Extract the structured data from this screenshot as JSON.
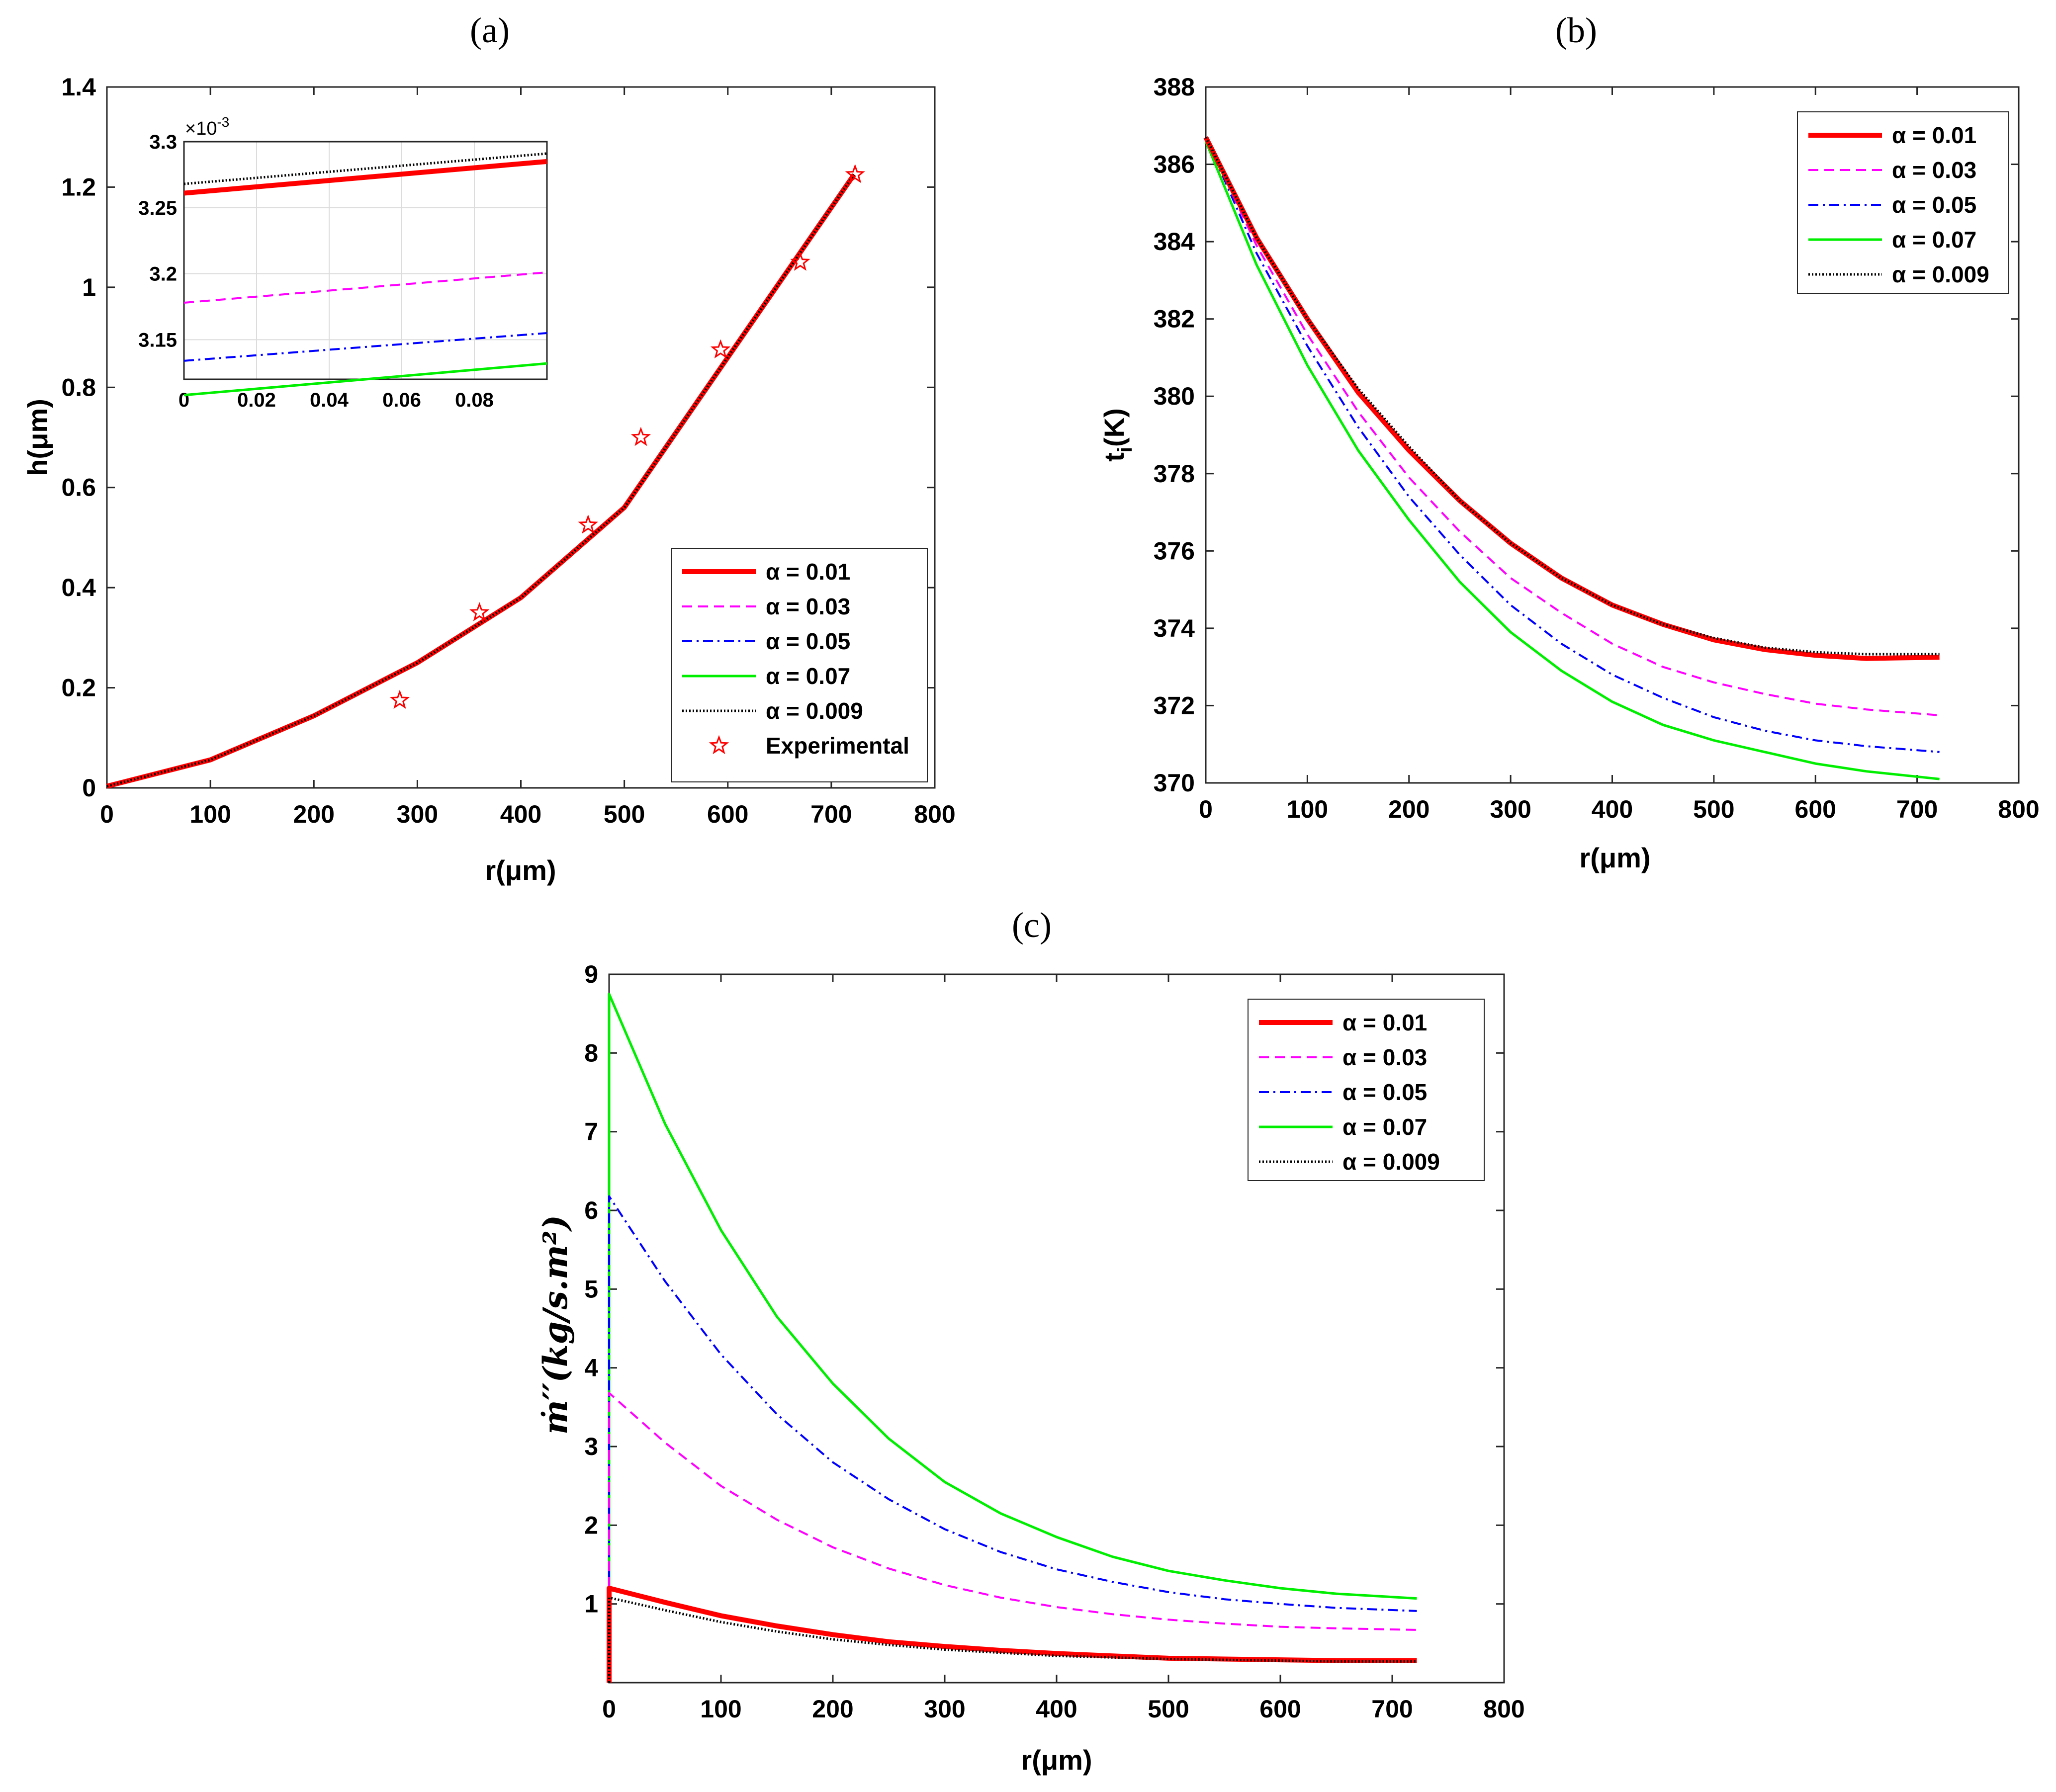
{
  "panels": {
    "a": "(a)",
    "b": "(b)",
    "c": "(c)"
  },
  "colors": {
    "a001": "#ff0000",
    "a003": "#ff00ff",
    "a005": "#0000ff",
    "a007": "#00ee00",
    "a0009": "#000000",
    "experimental": "#ff0000"
  },
  "legend": {
    "a001": "α =  0.01",
    "a003": "α =  0.03",
    "a005": "α =  0.05",
    "a007": "α =  0.07",
    "a0009": "α =  0.009",
    "experimental": "Experimental"
  },
  "chart_data": [
    {
      "id": "a",
      "type": "line",
      "title": "(a)",
      "xlabel": "r(μm)",
      "ylabel": "h(μm)",
      "xlim": [
        0,
        800
      ],
      "ylim": [
        0,
        1.4
      ],
      "xticks": [
        0,
        100,
        200,
        300,
        400,
        500,
        600,
        700,
        800
      ],
      "yticks": [
        0,
        0.2,
        0.4,
        0.6,
        0.8,
        1,
        1.2,
        1.4
      ],
      "ytick_labels": [
        "0",
        "0.2",
        "0.4",
        "0.6",
        "0.8",
        "1",
        "1.2",
        "1.4"
      ],
      "legend_position": "bottom-right",
      "series": [
        {
          "name": "α =  0.01",
          "style": "solid-thick",
          "x": [
            0,
            100,
            200,
            300,
            400,
            500,
            600,
            722
          ],
          "y": [
            0.0033,
            0.056,
            0.144,
            0.25,
            0.38,
            0.56,
            0.86,
            1.225
          ]
        },
        {
          "name": "α =  0.03",
          "style": "dashed",
          "x": [
            0,
            100,
            200,
            300,
            400,
            500,
            600,
            722
          ],
          "y": [
            0.0032,
            0.056,
            0.144,
            0.25,
            0.38,
            0.56,
            0.86,
            1.225
          ]
        },
        {
          "name": "α =  0.05",
          "style": "dashdot",
          "x": [
            0,
            100,
            200,
            300,
            400,
            500,
            600,
            722
          ],
          "y": [
            0.0031,
            0.056,
            0.144,
            0.25,
            0.38,
            0.56,
            0.86,
            1.225
          ]
        },
        {
          "name": "α =  0.07",
          "style": "solid",
          "x": [
            0,
            100,
            200,
            300,
            400,
            500,
            600,
            722
          ],
          "y": [
            0.0031,
            0.056,
            0.144,
            0.25,
            0.38,
            0.56,
            0.86,
            1.225
          ]
        },
        {
          "name": "α =  0.009",
          "style": "dotted",
          "x": [
            0,
            100,
            200,
            300,
            400,
            500,
            600,
            722
          ],
          "y": [
            0.0033,
            0.056,
            0.144,
            0.25,
            0.38,
            0.56,
            0.86,
            1.225
          ]
        }
      ],
      "experimental": {
        "name": "Experimental",
        "x": [
          283,
          360,
          465,
          516,
          593,
          670,
          723
        ],
        "y": [
          0.175,
          0.35,
          0.525,
          0.7,
          0.875,
          1.05,
          1.225
        ]
      },
      "inset": {
        "xlim": [
          0,
          0.1
        ],
        "ylim": [
          3.12,
          3.3
        ],
        "xticks": [
          0,
          0.02,
          0.04,
          0.06,
          0.08
        ],
        "xtick_labels": [
          "0",
          "0.02",
          "0.04",
          "0.06",
          "0.08"
        ],
        "yticks": [
          3.15,
          3.2,
          3.25,
          3.3
        ],
        "ytick_labels": [
          "3.15",
          "3.2",
          "3.25",
          "3.3"
        ],
        "exponent": "×10",
        "exponent_power": "-3",
        "grid": true,
        "series": [
          {
            "name": "α =  0.01",
            "x": [
              0,
              0.1
            ],
            "y": [
              3.261,
              3.285
            ]
          },
          {
            "name": "α =  0.03",
            "x": [
              0,
              0.1
            ],
            "y": [
              3.178,
              3.201
            ]
          },
          {
            "name": "α =  0.05",
            "x": [
              0,
              0.1
            ],
            "y": [
              3.134,
              3.155
            ]
          },
          {
            "name": "α =  0.07",
            "x": [
              0,
              0.1
            ],
            "y": [
              3.108,
              3.132
            ]
          },
          {
            "name": "α =  0.009",
            "x": [
              0,
              0.1
            ],
            "y": [
              3.268,
              3.291
            ]
          }
        ]
      }
    },
    {
      "id": "b",
      "type": "line",
      "title": "(b)",
      "xlabel": "r(μm)",
      "ylabel": "t",
      "ylabel_sub": "i",
      "ylabel_suffix": "(K)",
      "xlim": [
        0,
        800
      ],
      "ylim": [
        370,
        388
      ],
      "xticks": [
        0,
        100,
        200,
        300,
        400,
        500,
        600,
        700,
        800
      ],
      "yticks": [
        370,
        372,
        374,
        376,
        378,
        380,
        382,
        384,
        386,
        388
      ],
      "legend_position": "top-right",
      "series": [
        {
          "name": "α =  0.01",
          "x": [
            0,
            50,
            100,
            150,
            200,
            250,
            300,
            350,
            400,
            450,
            500,
            550,
            600,
            650,
            722
          ],
          "y": [
            386.7,
            384.1,
            382.0,
            380.1,
            378.6,
            377.3,
            376.2,
            375.3,
            374.6,
            374.1,
            373.7,
            373.45,
            373.3,
            373.22,
            373.25
          ]
        },
        {
          "name": "α =  0.03",
          "x": [
            0,
            50,
            100,
            150,
            200,
            250,
            300,
            350,
            400,
            450,
            500,
            550,
            600,
            650,
            722
          ],
          "y": [
            386.7,
            383.9,
            381.6,
            379.6,
            377.9,
            376.5,
            375.3,
            374.4,
            373.6,
            373.0,
            372.6,
            372.3,
            372.05,
            371.9,
            371.75
          ]
        },
        {
          "name": "α =  0.05",
          "x": [
            0,
            50,
            100,
            150,
            200,
            250,
            300,
            350,
            400,
            450,
            500,
            550,
            600,
            650,
            722
          ],
          "y": [
            386.7,
            383.7,
            381.3,
            379.2,
            377.4,
            375.9,
            374.6,
            373.6,
            372.8,
            372.2,
            371.7,
            371.35,
            371.1,
            370.95,
            370.8
          ]
        },
        {
          "name": "α =  0.07",
          "x": [
            0,
            50,
            100,
            150,
            200,
            250,
            300,
            350,
            400,
            450,
            500,
            550,
            600,
            650,
            722
          ],
          "y": [
            386.6,
            383.4,
            380.8,
            378.6,
            376.8,
            375.2,
            373.9,
            372.9,
            372.1,
            371.5,
            371.1,
            370.8,
            370.5,
            370.3,
            370.1
          ]
        },
        {
          "name": "α =  0.009",
          "x": [
            0,
            50,
            100,
            150,
            200,
            250,
            300,
            350,
            400,
            450,
            500,
            550,
            600,
            650,
            722
          ],
          "y": [
            386.7,
            384.1,
            382.0,
            380.2,
            378.7,
            377.3,
            376.2,
            375.3,
            374.6,
            374.1,
            373.75,
            373.5,
            373.38,
            373.33,
            373.33
          ]
        }
      ]
    },
    {
      "id": "c",
      "type": "line",
      "title": "(c)",
      "xlabel": "r(μm)",
      "ylabel": "ṁ′′(kg/s.m²)",
      "xlim": [
        0,
        800
      ],
      "ylim": [
        0,
        9
      ],
      "xticks": [
        0,
        100,
        200,
        300,
        400,
        500,
        600,
        700,
        800
      ],
      "yticks": [
        1,
        2,
        3,
        4,
        5,
        6,
        7,
        8,
        9
      ],
      "legend_position": "top-right",
      "series": [
        {
          "name": "α =  0.01",
          "x": [
            0,
            0,
            50,
            100,
            150,
            200,
            250,
            300,
            350,
            400,
            450,
            500,
            550,
            600,
            650,
            722
          ],
          "y": [
            0,
            1.2,
            1.02,
            0.85,
            0.72,
            0.61,
            0.52,
            0.46,
            0.41,
            0.37,
            0.34,
            0.31,
            0.3,
            0.29,
            0.28,
            0.28
          ]
        },
        {
          "name": "α =  0.03",
          "x": [
            0,
            0,
            50,
            100,
            150,
            200,
            250,
            300,
            350,
            400,
            450,
            500,
            550,
            600,
            650,
            722
          ],
          "y": [
            0,
            3.68,
            3.05,
            2.5,
            2.07,
            1.72,
            1.45,
            1.24,
            1.08,
            0.96,
            0.87,
            0.8,
            0.75,
            0.71,
            0.69,
            0.67
          ]
        },
        {
          "name": "α =  0.05",
          "x": [
            0,
            0,
            50,
            100,
            150,
            200,
            250,
            300,
            350,
            400,
            450,
            500,
            550,
            600,
            650,
            722
          ],
          "y": [
            0,
            6.18,
            5.1,
            4.17,
            3.41,
            2.8,
            2.33,
            1.95,
            1.66,
            1.44,
            1.28,
            1.15,
            1.06,
            1.0,
            0.95,
            0.91
          ]
        },
        {
          "name": "α =  0.07",
          "x": [
            0,
            0,
            50,
            100,
            150,
            200,
            250,
            300,
            350,
            400,
            450,
            500,
            550,
            600,
            650,
            722
          ],
          "y": [
            0,
            8.75,
            7.1,
            5.75,
            4.65,
            3.8,
            3.1,
            2.55,
            2.15,
            1.85,
            1.6,
            1.42,
            1.3,
            1.2,
            1.13,
            1.07
          ]
        },
        {
          "name": "α =  0.009",
          "x": [
            0,
            0,
            50,
            100,
            150,
            200,
            250,
            300,
            350,
            400,
            450,
            500,
            550,
            600,
            650,
            722
          ],
          "y": [
            0,
            1.08,
            0.92,
            0.77,
            0.65,
            0.55,
            0.48,
            0.42,
            0.38,
            0.34,
            0.32,
            0.3,
            0.29,
            0.28,
            0.27,
            0.27
          ]
        }
      ]
    }
  ]
}
